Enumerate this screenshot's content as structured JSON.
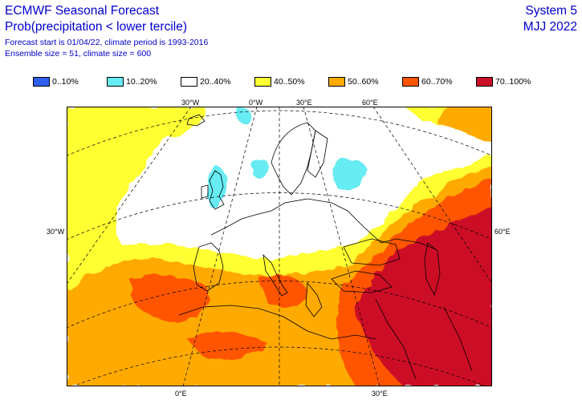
{
  "header": {
    "title_line1": "ECMWF Seasonal Forecast",
    "title_line2": "Prob(precipitation < lower tercile)",
    "info_line1": "Forecast start is 01/04/22, climate period is 1993-2016",
    "info_line2": "Ensemble size = 51, climate size = 600",
    "system": "System 5",
    "season": "MJJ 2022"
  },
  "legend": [
    {
      "label": "0..10%",
      "color": "#3060f0"
    },
    {
      "label": "10..20%",
      "color": "#66ecf2"
    },
    {
      "label": "20..40%",
      "color": "#ffffff"
    },
    {
      "label": "40..50%",
      "color": "#ffff33"
    },
    {
      "label": "50..60%",
      "color": "#ffaa00"
    },
    {
      "label": "60..70%",
      "color": "#ff5500"
    },
    {
      "label": "70..100%",
      "color": "#cc1028"
    }
  ],
  "grid_labels": {
    "top_30w": "30°W",
    "top_0": "0°W",
    "top_30e": "30°E",
    "top_60e": "60°E",
    "left_30w": "30°W",
    "right_60e": "60°E",
    "bottom_0": "0°E",
    "bottom_30e": "30°E"
  }
}
